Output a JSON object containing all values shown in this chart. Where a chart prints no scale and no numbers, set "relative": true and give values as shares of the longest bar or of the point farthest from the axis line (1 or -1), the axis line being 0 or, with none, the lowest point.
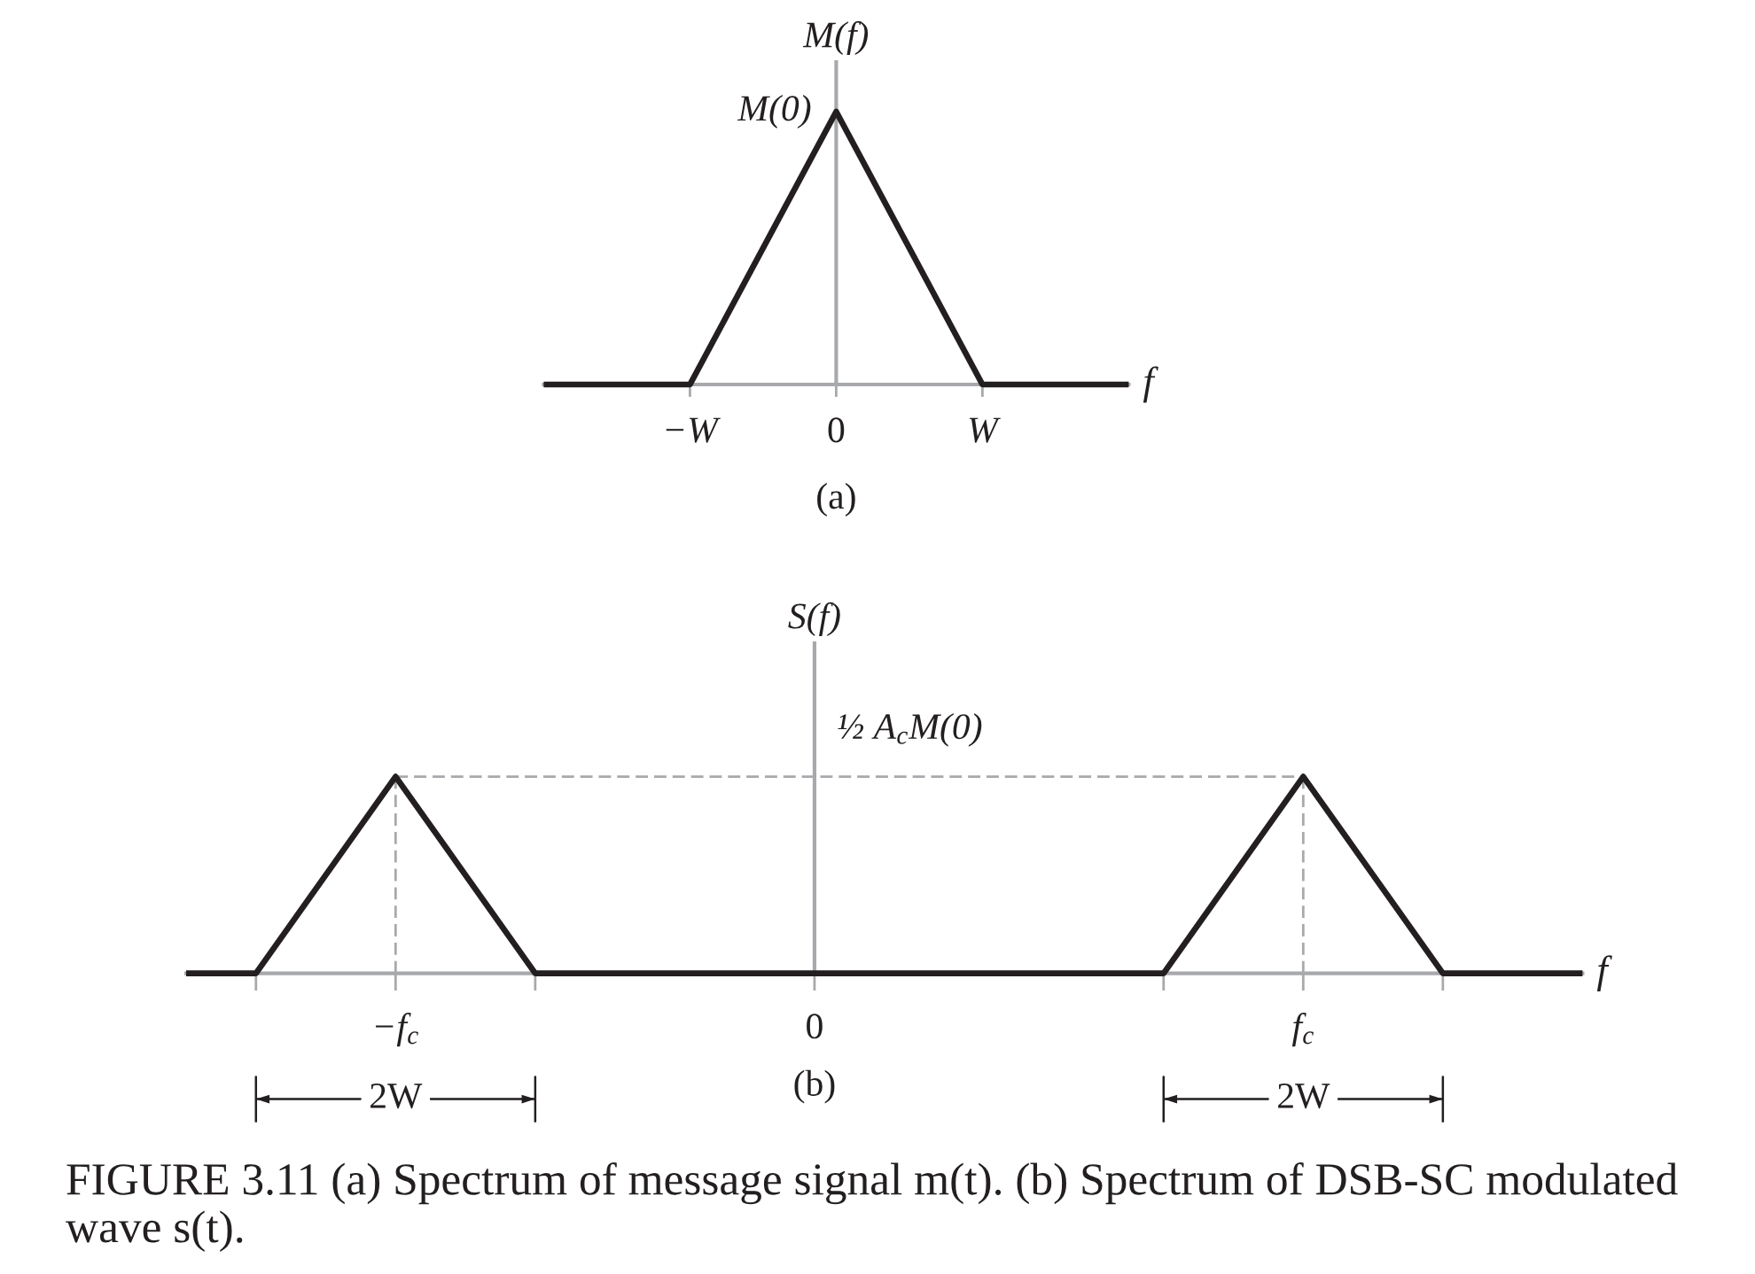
{
  "chart_data": [
    {
      "type": "line",
      "title": "(a)",
      "xlabel": "f",
      "ylabel": "M(f)",
      "relative": true,
      "categories": [
        null,
        "−W",
        "0",
        "W",
        null
      ],
      "series": [
        {
          "values": [
            0,
            0,
            1,
            0,
            0
          ],
          "color": "#231f20"
        }
      ],
      "annotations": [
        {
          "text": "M(0)",
          "x": "0",
          "y": 1
        }
      ]
    },
    {
      "type": "line",
      "title": "(b)",
      "xlabel": "f",
      "ylabel": "S(f)",
      "relative": true,
      "categories": [
        null,
        null,
        null,
        "−f$_{c}$",
        null,
        null,
        null,
        null,
        null,
        "0",
        null,
        null,
        null,
        null,
        null,
        null,
        "f$_{c}$",
        null,
        null,
        null,
        null
      ],
      "series": [
        {
          "values": [
            0,
            0,
            0.5,
            1,
            0.5,
            0,
            0,
            0,
            0,
            0,
            0,
            0,
            0,
            0,
            0,
            0.5,
            1,
            0.5,
            0,
            0,
            0
          ],
          "color": "#231f20"
        },
        {
          "values": [
            null,
            null,
            null,
            1,
            1,
            1,
            1,
            1,
            1,
            1,
            1,
            1,
            1,
            1,
            1,
            1,
            1,
            null,
            null,
            null,
            null
          ],
          "color": "#a7a9ac",
          "line_style": "dashed"
        },
        {
          "x": [
            "−f$_{c}$",
            "−f$_{c}$"
          ],
          "values": [
            0,
            1
          ],
          "color": "#a7a9ac",
          "line_style": "dashed"
        },
        {
          "x": [
            "f$_{c}$",
            "f$_{c}$"
          ],
          "values": [
            0,
            1
          ],
          "color": "#a7a9ac",
          "line_style": "dashed"
        }
      ],
      "annotations": [
        {
          "text": "½ A$_{c}$M(0)",
          "x": "0",
          "y": 1
        },
        "2W",
        "2W",
        "FIGURE 3.11 (a) Spectrum of message signal m(t). (b) Spectrum of DSB-SC modulated wave s(t)."
      ]
    }
  ]
}
